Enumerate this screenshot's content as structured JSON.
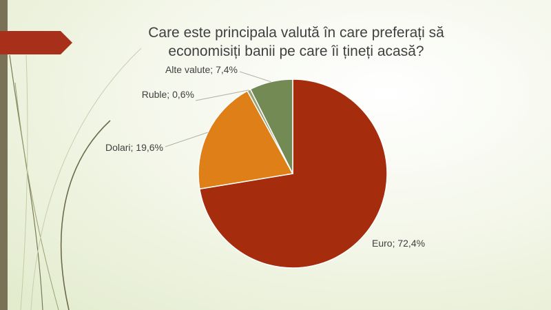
{
  "slide": {
    "title_line1": "Care este principala valută în care preferați să",
    "title_line2": "economisiți banii pe care îi țineți acasă?"
  },
  "colors": {
    "left_bar": "#7a7256",
    "arrow": "#a8301a",
    "accent_curves": "#6b6a4a"
  },
  "chart_data": {
    "type": "pie",
    "title": "Care este principala valută în care preferați să economisiți banii pe care îi țineți acasă?",
    "slices": [
      {
        "name": "Euro",
        "value": 72.4,
        "label": "Euro; 72,4%",
        "color": "#a52d0e"
      },
      {
        "name": "Dolari",
        "value": 19.6,
        "label": "Dolari; 19,6%",
        "color": "#de7f18"
      },
      {
        "name": "Ruble",
        "value": 0.6,
        "label": "Ruble; 0,6%",
        "color": "#98a178"
      },
      {
        "name": "Alte valute",
        "value": 7.4,
        "label": "Alte valute; 7,4%",
        "color": "#738a55"
      }
    ],
    "start": "12 o'clock",
    "direction": "clockwise",
    "legend": "none",
    "data_labels": "outside with leader lines"
  }
}
